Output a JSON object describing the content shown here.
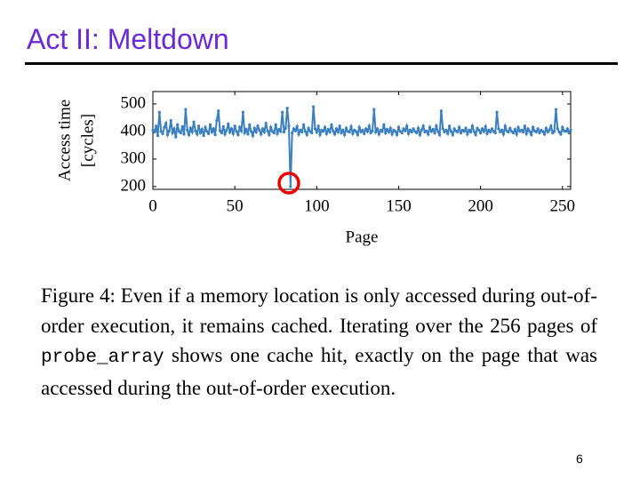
{
  "slide": {
    "title": "Act II: Meltdown",
    "caption_before": "Figure 4: Even if a memory location is only accessed during out-of-order execution, it remains cached. Iterating over the 256 pages of",
    "caption_code": "probe_array",
    "caption_after": "shows one cache hit, exactly on the page that was accessed during the out-of-order execution.",
    "page_number": "6"
  },
  "chart_data": {
    "type": "line",
    "xlabel": "Page",
    "ylabel": [
      "Access time",
      "[cycles]"
    ],
    "xlim": [
      0,
      255
    ],
    "ylim": [
      190,
      545
    ],
    "xticks": [
      0,
      50,
      100,
      150,
      200,
      250
    ],
    "yticks": [
      200,
      300,
      400,
      500
    ],
    "x": [
      0,
      1,
      2,
      3,
      4,
      5,
      6,
      7,
      8,
      9,
      10,
      11,
      12,
      13,
      14,
      15,
      16,
      17,
      18,
      19,
      20,
      21,
      22,
      23,
      24,
      25,
      26,
      27,
      28,
      29,
      30,
      31,
      32,
      33,
      34,
      35,
      36,
      37,
      38,
      39,
      40,
      41,
      42,
      43,
      44,
      45,
      46,
      47,
      48,
      49,
      50,
      51,
      52,
      53,
      54,
      55,
      56,
      57,
      58,
      59,
      60,
      61,
      62,
      63,
      64,
      65,
      66,
      67,
      68,
      69,
      70,
      71,
      72,
      73,
      74,
      75,
      76,
      77,
      78,
      79,
      80,
      81,
      82,
      83,
      84,
      85,
      86,
      87,
      88,
      89,
      90,
      91,
      92,
      93,
      94,
      95,
      96,
      97,
      98,
      99,
      100,
      101,
      102,
      103,
      104,
      105,
      106,
      107,
      108,
      109,
      110,
      111,
      112,
      113,
      114,
      115,
      116,
      117,
      118,
      119,
      120,
      121,
      122,
      123,
      124,
      125,
      126,
      127,
      128,
      129,
      130,
      131,
      132,
      133,
      134,
      135,
      136,
      137,
      138,
      139,
      140,
      141,
      142,
      143,
      144,
      145,
      146,
      147,
      148,
      149,
      150,
      151,
      152,
      153,
      154,
      155,
      156,
      157,
      158,
      159,
      160,
      161,
      162,
      163,
      164,
      165,
      166,
      167,
      168,
      169,
      170,
      171,
      172,
      173,
      174,
      175,
      176,
      177,
      178,
      179,
      180,
      181,
      182,
      183,
      184,
      185,
      186,
      187,
      188,
      189,
      190,
      191,
      192,
      193,
      194,
      195,
      196,
      197,
      198,
      199,
      200,
      201,
      202,
      203,
      204,
      205,
      206,
      207,
      208,
      209,
      210,
      211,
      212,
      213,
      214,
      215,
      216,
      217,
      218,
      219,
      220,
      221,
      222,
      223,
      224,
      225,
      226,
      227,
      228,
      229,
      230,
      231,
      232,
      233,
      234,
      235,
      236,
      237,
      238,
      239,
      240,
      241,
      242,
      243,
      244,
      245,
      246,
      247,
      248,
      249,
      250,
      251,
      252,
      253,
      254,
      255
    ],
    "series": [
      {
        "color": "#3a7fbf",
        "values": [
          405,
          398,
          420,
          385,
          470,
          400,
          392,
          415,
          430,
          388,
          402,
          440,
          395,
          410,
          380,
          425,
          400,
          395,
          418,
          390,
          480,
          405,
          388,
          412,
          398,
          435,
          402,
          390,
          420,
          395,
          408,
          385,
          415,
          400,
          392,
          425,
          398,
          410,
          388,
          440,
          475,
          402,
          395,
          418,
          390,
          405,
          428,
          398,
          410,
          392,
          420,
          400,
          388,
          415,
          402,
          470,
          395,
          408,
          390,
          425,
          400,
          385,
          412,
          398,
          420,
          405,
          390,
          410,
          398,
          430,
          402,
          388,
          415,
          400,
          395,
          425,
          392,
          408,
          400,
          470,
          398,
          412,
          485,
          420,
          200,
          395,
          410,
          402,
          418,
          390,
          405,
          398,
          425,
          400,
          388,
          412,
          400,
          395,
          490,
          410,
          398,
          420,
          388,
          405,
          400,
          415,
          392,
          408,
          398,
          425,
          402,
          390,
          410,
          398,
          420,
          395,
          405,
          388,
          412,
          400,
          398,
          418,
          392,
          405,
          400,
          388,
          415,
          398,
          405,
          392,
          410,
          400,
          420,
          395,
          402,
          480,
          398,
          410,
          390,
          405,
          400,
          425,
          395,
          408,
          398,
          412,
          390,
          405,
          400,
          388,
          415,
          400,
          395,
          410,
          402,
          420,
          392,
          405,
          398,
          410,
          400,
          395,
          412,
          388,
          405,
          420,
          398,
          402,
          390,
          415,
          400,
          408,
          395,
          420,
          400,
          388,
          475,
          410,
          398,
          405,
          392,
          420,
          400,
          388,
          410,
          402,
          398,
          415,
          395,
          405,
          400,
          412,
          390,
          405,
          398,
          420,
          400,
          388,
          412,
          405,
          395,
          410,
          400,
          418,
          392,
          405,
          398,
          410,
          400,
          395,
          470,
          410,
          398,
          405,
          390,
          420,
          402,
          398,
          412,
          400,
          395,
          408,
          390,
          415,
          400,
          405,
          398,
          420,
          392,
          410,
          400,
          388,
          415,
          402,
          398,
          410,
          395,
          405,
          400,
          390,
          412,
          398,
          405,
          420,
          395,
          400,
          480,
          410,
          398,
          390,
          415,
          402,
          400,
          410,
          395,
          405
        ]
      }
    ]
  }
}
